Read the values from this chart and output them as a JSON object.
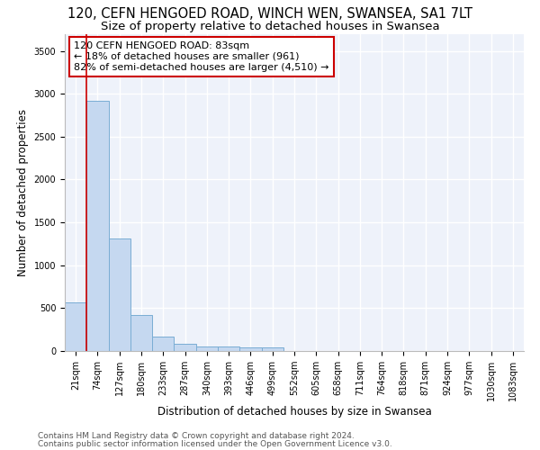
{
  "title_line1": "120, CEFN HENGOED ROAD, WINCH WEN, SWANSEA, SA1 7LT",
  "title_line2": "Size of property relative to detached houses in Swansea",
  "xlabel": "Distribution of detached houses by size in Swansea",
  "ylabel": "Number of detached properties",
  "categories": [
    "21sqm",
    "74sqm",
    "127sqm",
    "180sqm",
    "233sqm",
    "287sqm",
    "340sqm",
    "393sqm",
    "446sqm",
    "499sqm",
    "552sqm",
    "605sqm",
    "658sqm",
    "711sqm",
    "764sqm",
    "818sqm",
    "871sqm",
    "924sqm",
    "977sqm",
    "1030sqm",
    "1083sqm"
  ],
  "bar_values": [
    570,
    2920,
    1310,
    420,
    170,
    80,
    55,
    55,
    45,
    45,
    0,
    0,
    0,
    0,
    0,
    0,
    0,
    0,
    0,
    0,
    0
  ],
  "bar_color": "#c5d8f0",
  "bar_edge_color": "#7aadd4",
  "vline_x": 0.5,
  "vline_color": "#cc0000",
  "annotation_line1": "120 CEFN HENGOED ROAD: 83sqm",
  "annotation_line2": "← 18% of detached houses are smaller (961)",
  "annotation_line3": "82% of semi-detached houses are larger (4,510) →",
  "ylim": [
    0,
    3700
  ],
  "yticks": [
    0,
    500,
    1000,
    1500,
    2000,
    2500,
    3000,
    3500
  ],
  "background_color": "#eef2fa",
  "grid_color": "#ffffff",
  "footer_line1": "Contains HM Land Registry data © Crown copyright and database right 2024.",
  "footer_line2": "Contains public sector information licensed under the Open Government Licence v3.0.",
  "title_fontsize": 10.5,
  "subtitle_fontsize": 9.5,
  "axis_label_fontsize": 8.5,
  "tick_fontsize": 7,
  "annotation_fontsize": 8,
  "footer_fontsize": 6.5
}
